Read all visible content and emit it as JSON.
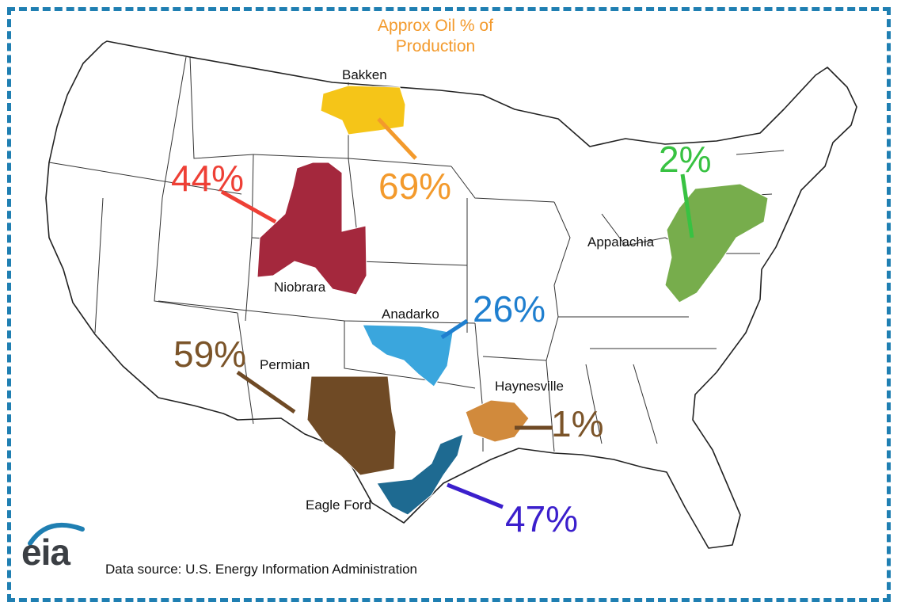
{
  "title": "Approx Oil % of Production",
  "source": "Data source: U.S. Energy Information Administration",
  "logo_text": "eia",
  "colors": {
    "frame": "#1f7fb2",
    "title": "#f39a2c",
    "logo_arc": "#1f7fb2"
  },
  "regions": [
    {
      "name": "Bakken",
      "percent": "69%",
      "color": "#f5c518",
      "pct_color": "#f39a2c",
      "line_color": "#f39a2c"
    },
    {
      "name": "Niobrara",
      "percent": "44%",
      "color": "#a4283d",
      "pct_color": "#ee4036",
      "line_color": "#ee4036"
    },
    {
      "name": "Anadarko",
      "percent": "26%",
      "color": "#3aa6dd",
      "pct_color": "#1f7fcf",
      "line_color": "#1f7fcf"
    },
    {
      "name": "Permian",
      "percent": "59%",
      "color": "#6f4a25",
      "pct_color": "#7b5429",
      "line_color": "#6f4a25"
    },
    {
      "name": "Haynesville",
      "percent": "1%",
      "color": "#d18a3c",
      "pct_color": "#7b5429",
      "line_color": "#6f4a25"
    },
    {
      "name": "Eagle Ford",
      "percent": "47%",
      "color": "#1e6a91",
      "pct_color": "#3b1fcc",
      "line_color": "#3b1fcc"
    },
    {
      "name": "Appalachia",
      "percent": "2%",
      "color": "#77ad4c",
      "pct_color": "#38c242",
      "line_color": "#38c242"
    }
  ]
}
